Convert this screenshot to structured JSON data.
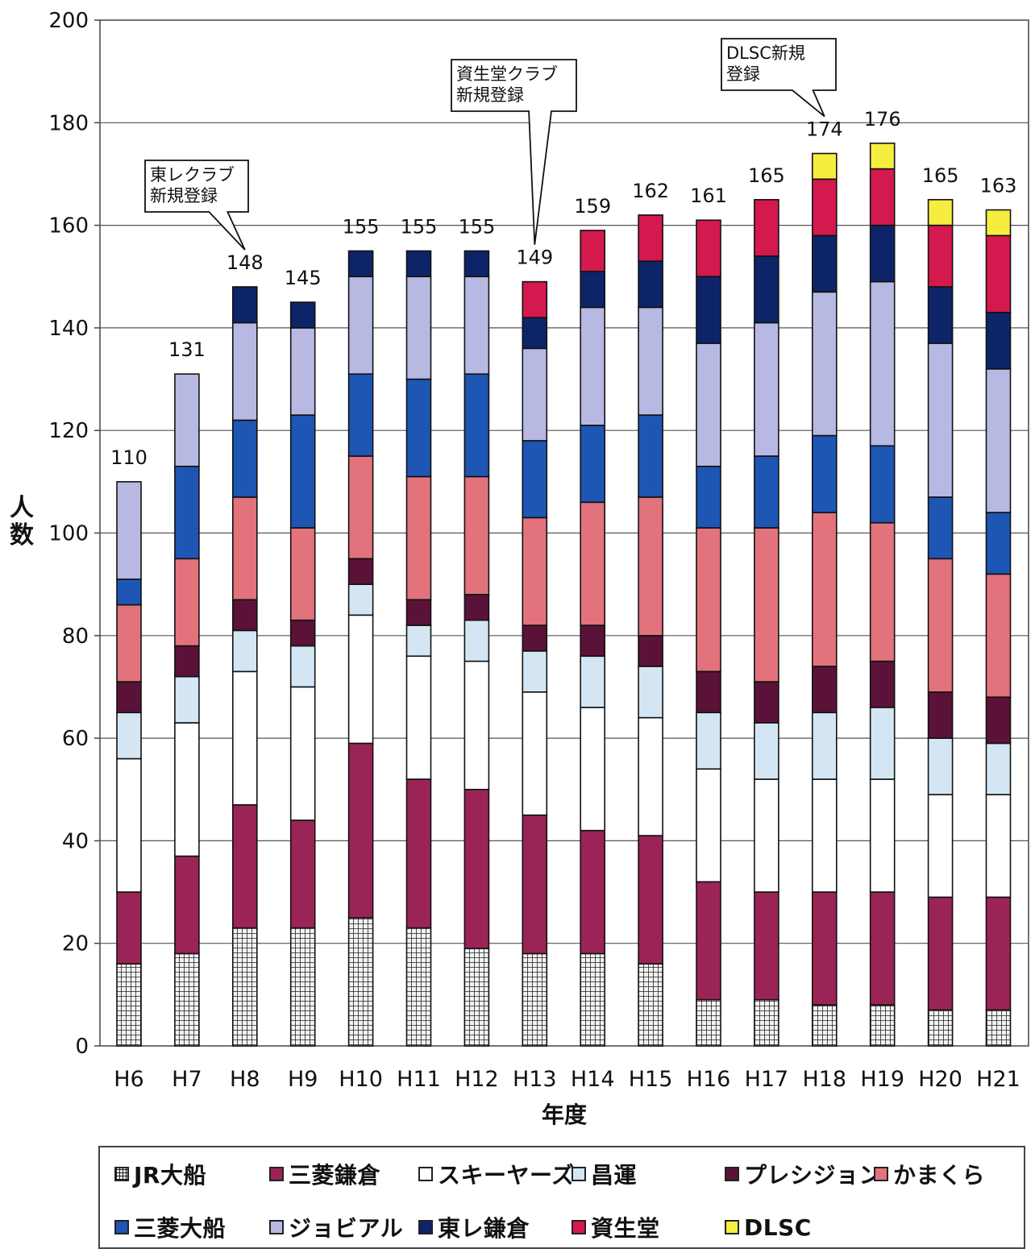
{
  "chart_data": {
    "type": "bar",
    "stacked": true,
    "ylabel": "人\n数",
    "xlabel": "年度",
    "ylim": [
      0,
      200
    ],
    "yticks": [
      0,
      20,
      40,
      60,
      80,
      100,
      120,
      140,
      160,
      180,
      200
    ],
    "grid": true,
    "categories": [
      "H6",
      "H7",
      "H8",
      "H9",
      "H10",
      "H11",
      "H12",
      "H13",
      "H14",
      "H15",
      "H16",
      "H17",
      "H18",
      "H19",
      "H20",
      "H21"
    ],
    "totals": [
      110,
      131,
      148,
      145,
      155,
      155,
      155,
      149,
      159,
      162,
      161,
      165,
      174,
      176,
      165,
      163
    ],
    "series": [
      {
        "name": "JR大船",
        "color": "#e8e8e8",
        "pattern": "grid",
        "values": [
          16,
          18,
          23,
          23,
          25,
          23,
          19,
          18,
          18,
          16,
          9,
          9,
          8,
          8,
          7,
          7
        ]
      },
      {
        "name": "三菱鎌倉",
        "color": "#9b2457",
        "values": [
          14,
          19,
          24,
          21,
          34,
          29,
          31,
          27,
          24,
          25,
          23,
          21,
          22,
          22,
          22,
          22
        ]
      },
      {
        "name": "スキーヤーズ",
        "color": "#ffffff",
        "values": [
          26,
          26,
          26,
          26,
          25,
          24,
          25,
          24,
          24,
          23,
          22,
          22,
          22,
          22,
          20,
          20
        ]
      },
      {
        "name": "昌運",
        "color": "#d4e6f4",
        "values": [
          9,
          9,
          8,
          8,
          6,
          6,
          8,
          8,
          10,
          10,
          11,
          11,
          13,
          14,
          11,
          10
        ]
      },
      {
        "name": "プレシジョン",
        "color": "#5a1238",
        "values": [
          6,
          6,
          6,
          5,
          5,
          5,
          5,
          5,
          6,
          6,
          8,
          8,
          9,
          9,
          9,
          9
        ]
      },
      {
        "name": "かまくら",
        "color": "#e2737d",
        "values": [
          15,
          17,
          20,
          18,
          20,
          24,
          23,
          21,
          24,
          27,
          28,
          30,
          30,
          27,
          26,
          24
        ]
      },
      {
        "name": "三菱大船",
        "color": "#1e56b4",
        "values": [
          5,
          18,
          15,
          22,
          16,
          19,
          20,
          15,
          15,
          16,
          12,
          14,
          15,
          15,
          12,
          12
        ]
      },
      {
        "name": "ジョビアル",
        "color": "#b8b9e2",
        "values": [
          19,
          18,
          19,
          17,
          19,
          20,
          19,
          18,
          23,
          21,
          24,
          26,
          28,
          32,
          30,
          28
        ]
      },
      {
        "name": "東レ鎌倉",
        "color": "#0d2568",
        "values": [
          0,
          0,
          7,
          5,
          5,
          5,
          5,
          6,
          7,
          9,
          13,
          13,
          11,
          11,
          11,
          11
        ]
      },
      {
        "name": "資生堂",
        "color": "#d3194e",
        "values": [
          0,
          0,
          0,
          0,
          0,
          0,
          0,
          7,
          8,
          9,
          11,
          11,
          11,
          11,
          12,
          15
        ]
      },
      {
        "name": "DLSC",
        "color": "#f6ee3e",
        "values": [
          0,
          0,
          0,
          0,
          0,
          0,
          0,
          0,
          0,
          0,
          0,
          0,
          5,
          5,
          5,
          5
        ]
      }
    ],
    "annotations": [
      {
        "text": "東レクラブ\n新規登録",
        "category": "H8"
      },
      {
        "text": "資生堂クラブ\n新規登録",
        "category": "H13"
      },
      {
        "text": "DLSC新規\n登録",
        "category": "H18"
      }
    ],
    "legend": {
      "placement": "bottom",
      "columns": 6
    }
  }
}
